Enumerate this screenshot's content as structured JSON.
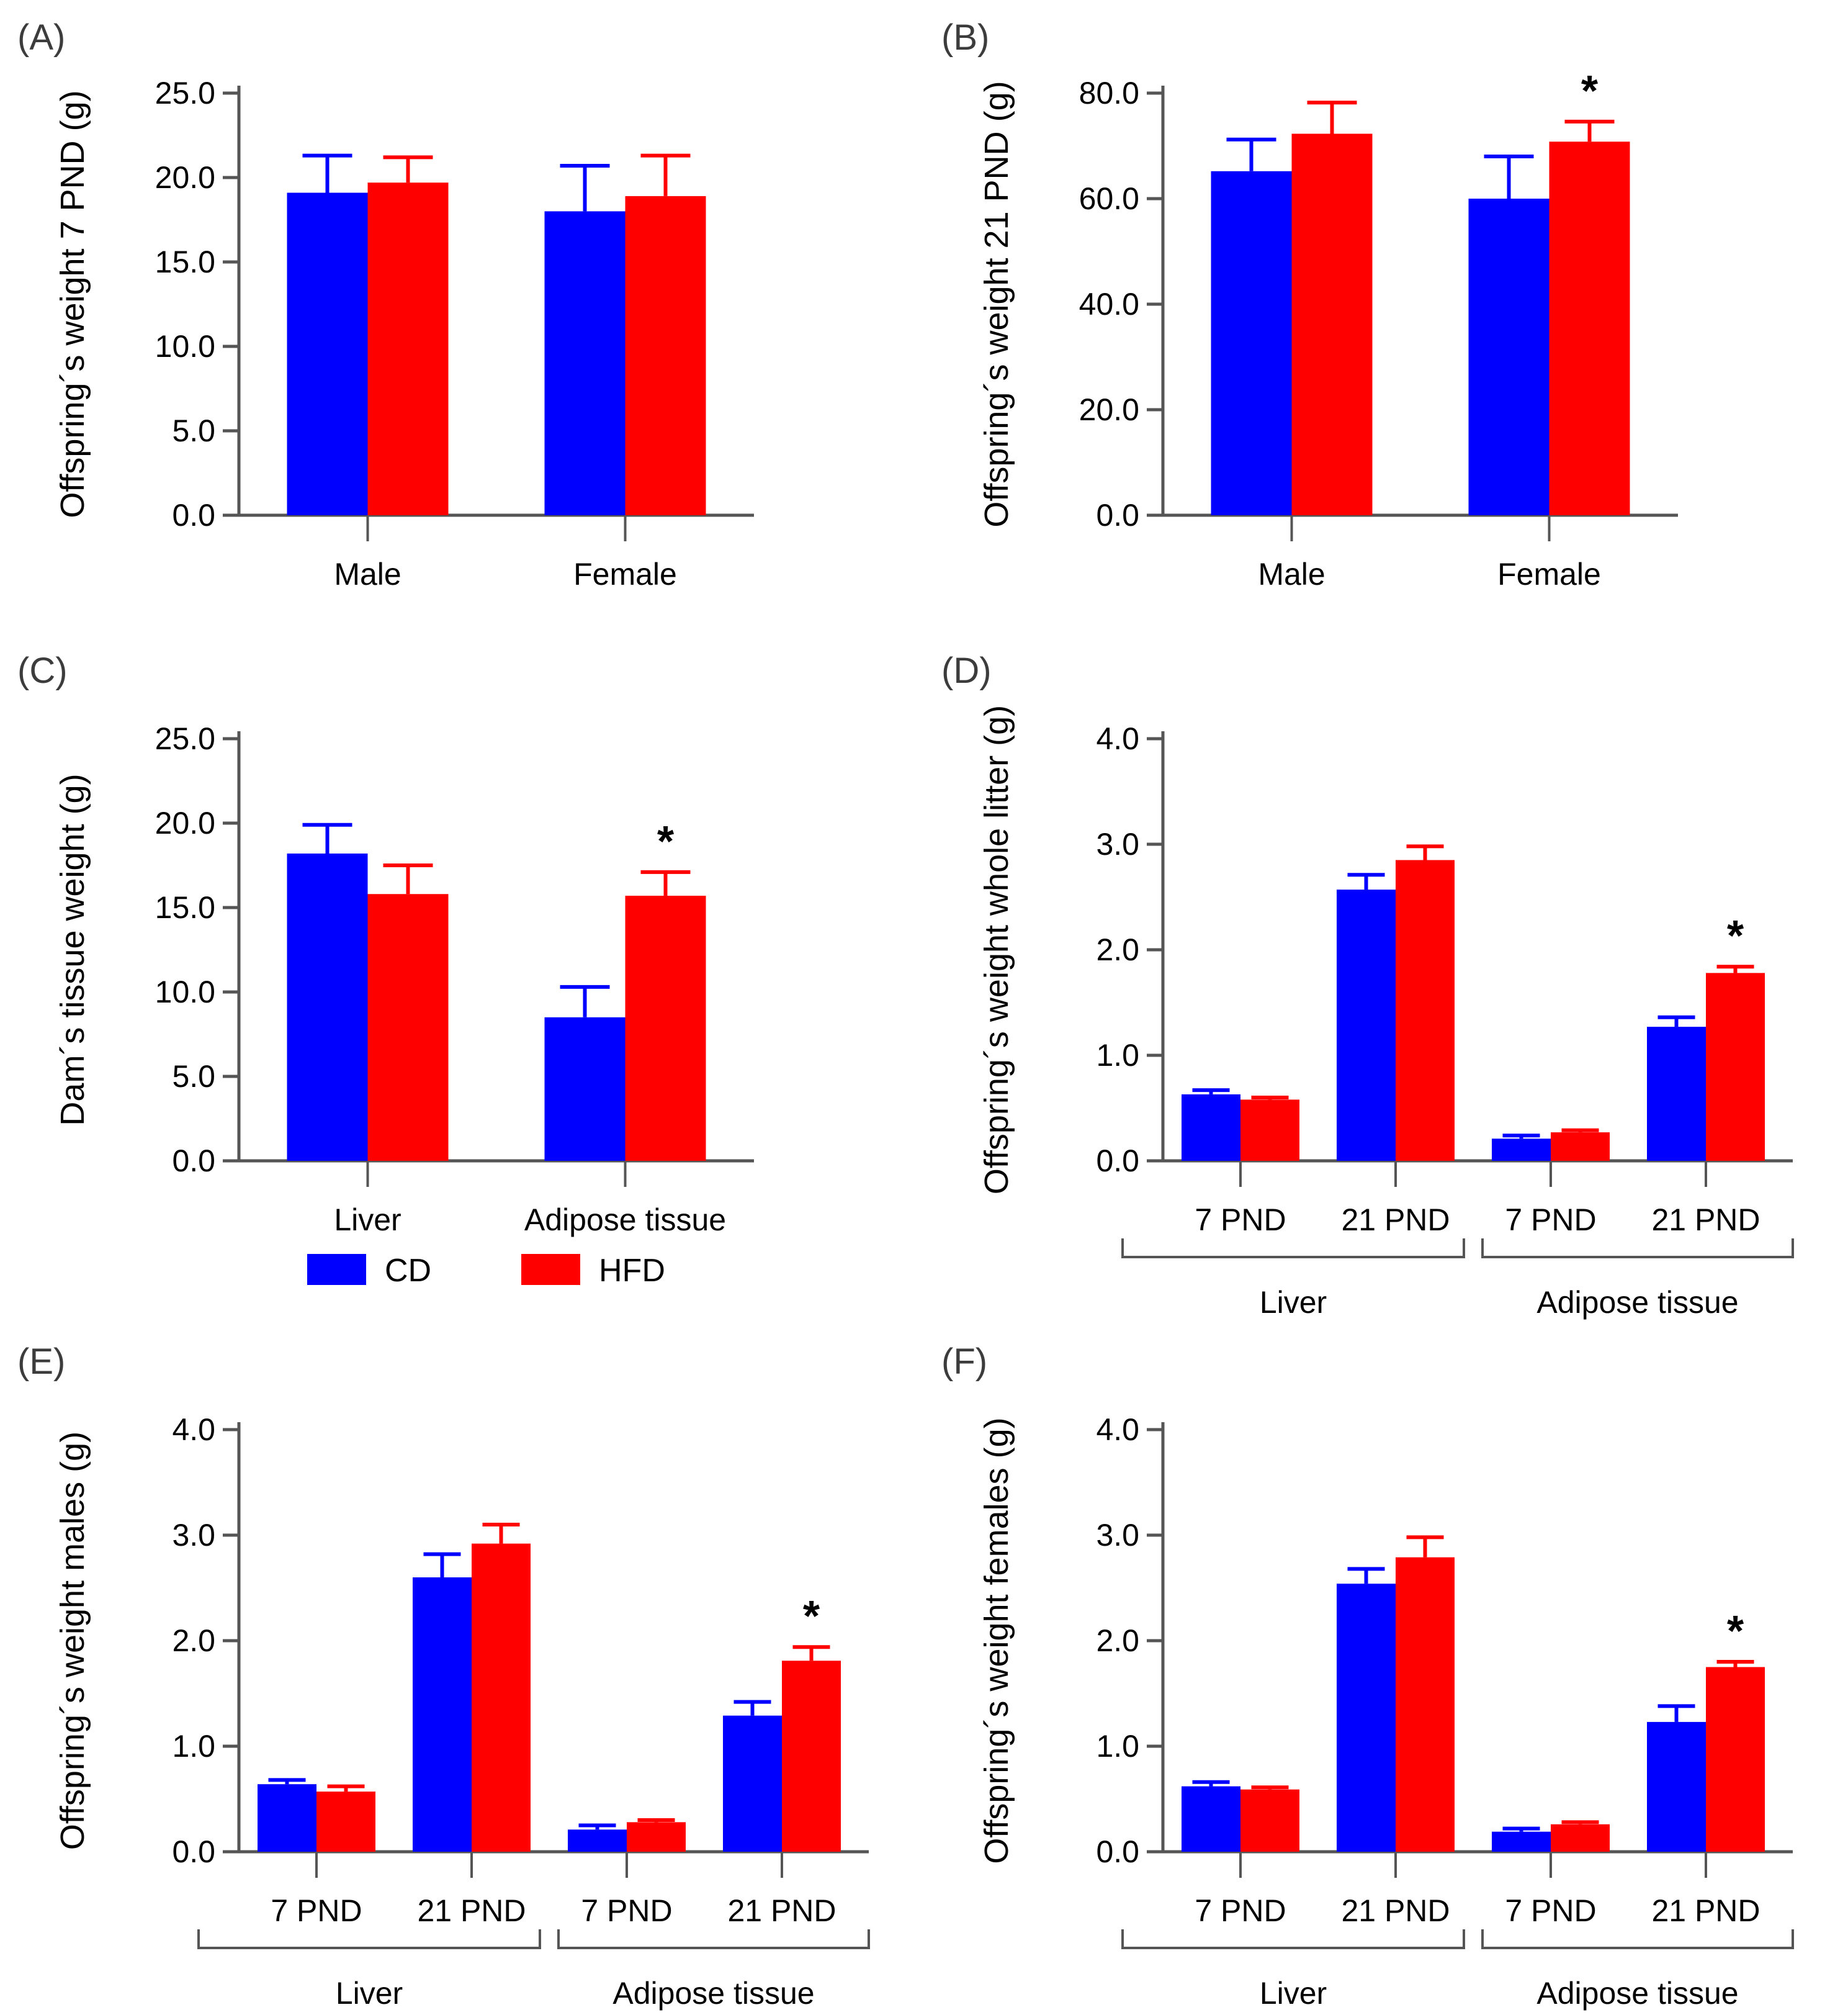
{
  "figure": {
    "background": "#ffffff",
    "panel_letter_color": "#3c3c3c",
    "axis_color": "#555555",
    "text_color": "#000000",
    "series_colors": {
      "CD": "#0000fe",
      "HFD": "#fe0000"
    },
    "legend": {
      "position": "below panel C",
      "items": [
        {
          "label": "CD",
          "color": "#0000fe"
        },
        {
          "label": "HFD",
          "color": "#fe0000"
        }
      ]
    }
  },
  "chart_data": [
    {
      "type": "bar",
      "panel_label": "(A)",
      "ylabel": "Offspring´s weight 7 PND (g)",
      "xlabel": "",
      "ylim": [
        0,
        25
      ],
      "ytick_step": 5,
      "grid": false,
      "categories": [
        "Male",
        "Female"
      ],
      "series": [
        {
          "name": "CD",
          "color": "#0000fe",
          "values": [
            19.1,
            18.0
          ],
          "errors": [
            2.2,
            2.7
          ],
          "sig": [
            null,
            null
          ]
        },
        {
          "name": "HFD",
          "color": "#fe0000",
          "values": [
            19.7,
            18.9
          ],
          "errors": [
            1.5,
            2.4
          ],
          "sig": [
            null,
            null
          ]
        }
      ],
      "group_brackets": null,
      "show_legend": false
    },
    {
      "type": "bar",
      "panel_label": "(B)",
      "ylabel": "Offspring´s weight 21 PND (g)",
      "xlabel": "",
      "ylim": [
        0,
        80
      ],
      "ytick_step": 20,
      "grid": false,
      "categories": [
        "Male",
        "Female"
      ],
      "series": [
        {
          "name": "CD",
          "color": "#0000fe",
          "values": [
            65.2,
            60.0
          ],
          "errors": [
            6.0,
            8.0
          ],
          "sig": [
            null,
            null
          ]
        },
        {
          "name": "HFD",
          "color": "#fe0000",
          "values": [
            72.3,
            70.8
          ],
          "errors": [
            5.9,
            3.8
          ],
          "sig": [
            null,
            "*"
          ]
        }
      ],
      "group_brackets": null,
      "show_legend": false
    },
    {
      "type": "bar",
      "panel_label": "(C)",
      "ylabel": "Dam´s tissue weight (g)",
      "xlabel": "",
      "ylim": [
        0,
        25
      ],
      "ytick_step": 5,
      "grid": false,
      "categories": [
        "Liver",
        "Adipose tissue"
      ],
      "series": [
        {
          "name": "CD",
          "color": "#0000fe",
          "values": [
            18.2,
            8.5
          ],
          "errors": [
            1.7,
            1.8
          ],
          "sig": [
            null,
            null
          ]
        },
        {
          "name": "HFD",
          "color": "#fe0000",
          "values": [
            15.8,
            15.7
          ],
          "errors": [
            1.7,
            1.4
          ],
          "sig": [
            null,
            "*"
          ]
        }
      ],
      "group_brackets": null,
      "show_legend": true
    },
    {
      "type": "bar",
      "panel_label": "(D)",
      "ylabel": "Offspring´s weight whole litter (g)",
      "xlabel": "",
      "ylim": [
        0,
        4
      ],
      "ytick_step": 1,
      "grid": false,
      "categories": [
        "7 PND",
        "21 PND",
        "7 PND",
        "21 PND"
      ],
      "series": [
        {
          "name": "CD",
          "color": "#0000fe",
          "values": [
            0.63,
            2.57,
            0.21,
            1.27
          ],
          "errors": [
            0.04,
            0.14,
            0.03,
            0.09
          ],
          "sig": [
            null,
            null,
            null,
            null
          ]
        },
        {
          "name": "HFD",
          "color": "#fe0000",
          "values": [
            0.58,
            2.85,
            0.27,
            1.78
          ],
          "errors": [
            0.02,
            0.13,
            0.02,
            0.06
          ],
          "sig": [
            null,
            null,
            null,
            "*"
          ]
        }
      ],
      "group_brackets": [
        {
          "from": 0,
          "to": 1,
          "label": "Liver"
        },
        {
          "from": 2,
          "to": 3,
          "label": "Adipose tissue"
        }
      ],
      "show_legend": false
    },
    {
      "type": "bar",
      "panel_label": "(E)",
      "ylabel": "Offspring´s weight males (g)",
      "xlabel": "",
      "ylim": [
        0,
        4
      ],
      "ytick_step": 1,
      "grid": false,
      "categories": [
        "7 PND",
        "21 PND",
        "7 PND",
        "21 PND"
      ],
      "series": [
        {
          "name": "CD",
          "color": "#0000fe",
          "values": [
            0.64,
            2.6,
            0.21,
            1.29
          ],
          "errors": [
            0.04,
            0.22,
            0.04,
            0.13
          ],
          "sig": [
            null,
            null,
            null,
            null
          ]
        },
        {
          "name": "HFD",
          "color": "#fe0000",
          "values": [
            0.57,
            2.92,
            0.28,
            1.81
          ],
          "errors": [
            0.05,
            0.18,
            0.02,
            0.13
          ],
          "sig": [
            null,
            null,
            null,
            "*"
          ]
        }
      ],
      "group_brackets": [
        {
          "from": 0,
          "to": 1,
          "label": "Liver"
        },
        {
          "from": 2,
          "to": 3,
          "label": "Adipose tissue"
        }
      ],
      "show_legend": false
    },
    {
      "type": "bar",
      "panel_label": "(F)",
      "ylabel": "Offspring´s weight  females (g)",
      "xlabel": "",
      "ylim": [
        0,
        4
      ],
      "ytick_step": 1,
      "grid": false,
      "categories": [
        "7 PND",
        "21 PND",
        "7 PND",
        "21 PND"
      ],
      "series": [
        {
          "name": "CD",
          "color": "#0000fe",
          "values": [
            0.62,
            2.54,
            0.19,
            1.23
          ],
          "errors": [
            0.04,
            0.14,
            0.03,
            0.15
          ],
          "sig": [
            null,
            null,
            null,
            null
          ]
        },
        {
          "name": "HFD",
          "color": "#fe0000",
          "values": [
            0.59,
            2.79,
            0.26,
            1.75
          ],
          "errors": [
            0.02,
            0.19,
            0.02,
            0.05
          ],
          "sig": [
            null,
            null,
            null,
            "*"
          ]
        }
      ],
      "group_brackets": [
        {
          "from": 0,
          "to": 1,
          "label": "Liver"
        },
        {
          "from": 2,
          "to": 3,
          "label": "Adipose tissue"
        }
      ],
      "show_legend": false
    }
  ]
}
